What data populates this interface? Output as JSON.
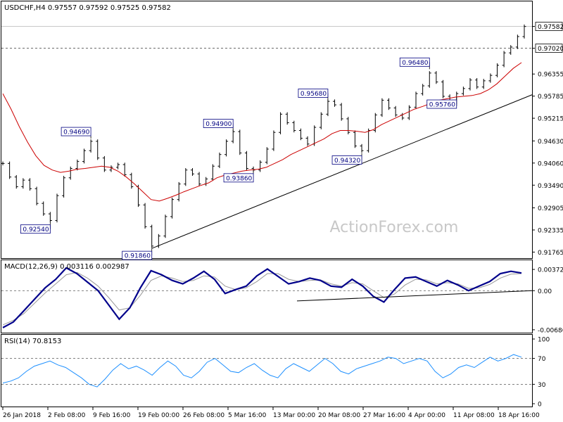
{
  "symbol_header": "USDCHF,H4  0.97557 0.97592 0.97525 0.97582",
  "watermark": "ActionForex.com",
  "colors": {
    "price": "#000000",
    "ma": "#cc0000",
    "macd": "#00008b",
    "signal": "#999999",
    "rsi": "#1e90ff",
    "trendline": "#000000",
    "levelline": "#555555"
  },
  "chart_data": [
    {
      "type": "line",
      "panel": "price",
      "title": "USDCHF,H4  0.97557 0.97592 0.97525 0.97582",
      "ylim": [
        0.917,
        0.979
      ],
      "price_axis_ticks": [
        "0.97582",
        "0.97020",
        "0.96355",
        "0.95785",
        "0.95215",
        "0.94630",
        "0.94060",
        "0.93490",
        "0.92905",
        "0.92335",
        "0.91765"
      ],
      "time_labels": [
        "26 Jan 2018",
        "2 Feb 08:00",
        "9 Feb 16:00",
        "19 Feb 00:00",
        "26 Feb 08:00",
        "5 Mar 16:00",
        "13 Mar 00:00",
        "20 Mar 08:00",
        "27 Mar 16:00",
        "4 Apr 00:00",
        "11 Apr 08:00",
        "18 Apr 16:00"
      ],
      "annotations": [
        "0.92540",
        "0.94690",
        "0.91860",
        "0.94900",
        "0.93860",
        "0.95680",
        "0.94320",
        "0.96480",
        "0.95760"
      ],
      "level_line": "0.97020",
      "last_price": "0.97582",
      "series": [
        {
          "values": [
            0.9405,
            0.937,
            0.9345,
            0.9362,
            0.934,
            0.9302,
            0.9275,
            0.9258,
            0.9322,
            0.9368,
            0.9392,
            0.941,
            0.9438,
            0.9462,
            0.9419,
            0.9388,
            0.9395,
            0.9402,
            0.9376,
            0.9345,
            0.9298,
            0.9242,
            0.9192,
            0.9218,
            0.9268,
            0.9312,
            0.9352,
            0.9388,
            0.9378,
            0.9352,
            0.9365,
            0.9398,
            0.9428,
            0.9462,
            0.9487,
            0.9432,
            0.9392,
            0.9388,
            0.9408,
            0.9442,
            0.9485,
            0.9532,
            0.951,
            0.949,
            0.947,
            0.9455,
            0.9498,
            0.9532,
            0.9565,
            0.9556,
            0.952,
            0.9485,
            0.945,
            0.9438,
            0.949,
            0.953,
            0.9568,
            0.9548,
            0.953,
            0.9522,
            0.955,
            0.9585,
            0.9605,
            0.9638,
            0.9615,
            0.9578,
            0.9558,
            0.9585,
            0.9598,
            0.962,
            0.9602,
            0.9618,
            0.9632,
            0.9658,
            0.969,
            0.9705,
            0.9732,
            0.9758
          ],
          "name": ""
        },
        {
          "values": [
            0.9585,
            0.9545,
            0.95,
            0.946,
            0.9425,
            0.94,
            0.9388,
            0.9382,
            0.9385,
            0.939,
            0.9392,
            0.9395,
            0.9398,
            0.9395,
            0.9385,
            0.937,
            0.9352,
            0.9332,
            0.9312,
            0.9308,
            0.9315,
            0.9323,
            0.9332,
            0.934,
            0.9348,
            0.9355,
            0.9368,
            0.9375,
            0.938,
            0.9385,
            0.9388,
            0.939,
            0.9395,
            0.9405,
            0.9415,
            0.9428,
            0.9438,
            0.9448,
            0.9458,
            0.9468,
            0.9482,
            0.949,
            0.949,
            0.9488,
            0.9485,
            0.9492,
            0.9505,
            0.9515,
            0.9525,
            0.9535,
            0.9545,
            0.9552,
            0.956,
            0.9568,
            0.9572,
            0.9576,
            0.9578,
            0.958,
            0.9585,
            0.9595,
            0.961,
            0.963,
            0.965,
            0.9665
          ],
          "name": ""
        }
      ]
    },
    {
      "type": "line",
      "panel": "macd",
      "title": "MACD(12,26,9) 0.003116 0.002987",
      "ylim": [
        -0.007,
        0.0046
      ],
      "axis_ticks": [
        "0.003728",
        "0.00",
        "-0.006862"
      ],
      "series": [
        {
          "name": "",
          "values": [
            -0.0065,
            -0.0055,
            -0.0035,
            -0.0015,
            0.0005,
            0.002,
            0.004,
            0.003,
            0.0015,
            0.0,
            -0.0025,
            -0.005,
            -0.003,
            0.0005,
            0.0035,
            0.0028,
            0.0018,
            0.0012,
            0.0022,
            0.0034,
            0.002,
            -0.0005,
            0.0002,
            0.0008,
            0.0026,
            0.0038,
            0.0025,
            0.0012,
            0.0016,
            0.0022,
            0.0018,
            0.0008,
            0.0006,
            0.002,
            0.0008,
            -0.001,
            -0.002,
            0.0002,
            0.0022,
            0.0024,
            0.0016,
            0.0008,
            0.0018,
            0.001,
            0.0,
            0.0008,
            0.0016,
            0.003,
            0.0034,
            0.0031
          ]
        },
        {
          "name": "",
          "values": [
            -0.006,
            -0.0052,
            -0.004,
            -0.0022,
            -0.0004,
            0.0012,
            0.0028,
            0.0032,
            0.0022,
            0.0008,
            -0.0012,
            -0.0034,
            -0.003,
            -0.0008,
            0.0018,
            0.0026,
            0.0022,
            0.0016,
            0.0018,
            0.0026,
            0.0024,
            0.0008,
            0.0002,
            0.0005,
            0.0016,
            0.003,
            0.003,
            0.002,
            0.0016,
            0.0018,
            0.0019,
            0.0012,
            0.0008,
            0.0014,
            0.0012,
            0.0,
            -0.0012,
            -0.0006,
            0.001,
            0.002,
            0.0019,
            0.0012,
            0.0014,
            0.0012,
            0.0004,
            0.0005,
            0.0011,
            0.0022,
            0.0029,
            0.003
          ]
        }
      ]
    },
    {
      "type": "line",
      "panel": "rsi",
      "title": "RSI(14) 70.8153",
      "ylim": [
        0,
        100
      ],
      "axis_ticks": [
        "100",
        "70",
        "30",
        "0"
      ],
      "series": [
        {
          "name": "",
          "values": [
            32,
            35,
            40,
            50,
            58,
            62,
            66,
            60,
            56,
            48,
            40,
            30,
            26,
            38,
            52,
            62,
            54,
            58,
            52,
            44,
            56,
            66,
            58,
            44,
            40,
            50,
            64,
            70,
            60,
            50,
            48,
            56,
            62,
            52,
            44,
            40,
            54,
            62,
            56,
            50,
            60,
            70,
            62,
            50,
            46,
            54,
            58,
            62,
            66,
            72,
            70,
            62,
            66,
            70,
            66,
            50,
            40,
            46,
            56,
            60,
            56,
            64,
            72,
            66,
            70,
            76,
            72
          ]
        }
      ]
    }
  ]
}
